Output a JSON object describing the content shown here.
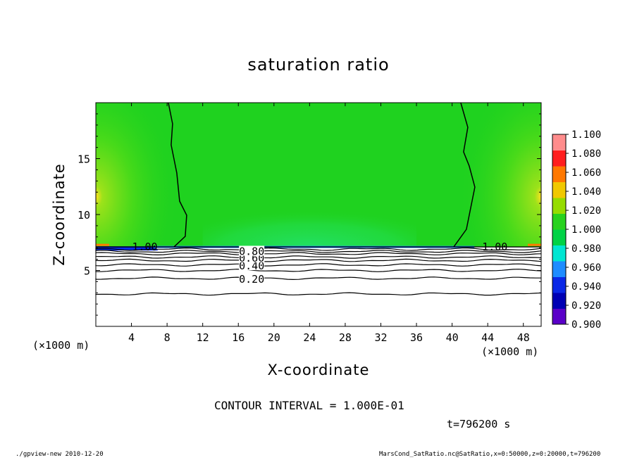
{
  "footer": {
    "left": "./gpview-new  2010-12-20",
    "right": "MarsCond_SatRatio.nc@SatRatio,x=0:50000,z=0:20000,t=796200"
  },
  "time_label": "t=796200 s",
  "contour_interval": "CONTOUR INTERVAL = 1.000E-01",
  "x_unit": "(×1000 m)",
  "colors": {
    "background": "#ffffff",
    "field_base": "#1fd21f",
    "field_light": "#52dc18",
    "field_yellowish": "#9de21a",
    "field_teal": "#22dc48",
    "under_white": "#ffffff"
  },
  "chart_data": {
    "type": "heatmap",
    "title": "saturation ratio",
    "xlabel": "X-coordinate",
    "ylabel": "Z-coordinate",
    "x_unit": "(×1000 m)",
    "xlim": [
      0,
      50
    ],
    "ylim": [
      0,
      20
    ],
    "x_ticks": [
      4,
      8,
      12,
      16,
      20,
      24,
      28,
      32,
      36,
      40,
      44,
      48
    ],
    "y_ticks": [
      5,
      10,
      15
    ],
    "colorbar": {
      "levels": [
        0.9,
        0.92,
        0.94,
        0.96,
        0.98,
        1.0,
        1.02,
        1.04,
        1.06,
        1.08,
        1.1
      ],
      "labels": [
        "0.900",
        "0.920",
        "0.940",
        "0.960",
        "0.980",
        "1.000",
        "1.020",
        "1.040",
        "1.060",
        "1.080",
        "1.100"
      ],
      "colors": [
        "#5a00c8",
        "#0000b4",
        "#0a28e6",
        "#1e8cff",
        "#00e6d2",
        "#00d246",
        "#28d21e",
        "#96dc00",
        "#f0c800",
        "#ff7800",
        "#ff1e1e",
        "#ff8c8c"
      ]
    },
    "contour_interval": 0.1,
    "contour_labels": [
      {
        "text": "0.20",
        "x": 17.5,
        "z": 4.2
      },
      {
        "text": "0.40",
        "x": 17.5,
        "z": 5.4
      },
      {
        "text": "0.60",
        "x": 17.5,
        "z": 6.1
      },
      {
        "text": "0.80",
        "x": 17.5,
        "z": 6.7
      },
      {
        "text": "1.00",
        "x": 5.5,
        "z": 7.1
      },
      {
        "text": "1.00",
        "x": 44.8,
        "z": 7.1
      }
    ],
    "contour_levels_below": [
      {
        "level": 0.1,
        "z": 2.9
      },
      {
        "level": 0.2,
        "z": 4.3
      },
      {
        "level": 0.3,
        "z": 5.0
      },
      {
        "level": 0.4,
        "z": 5.5
      },
      {
        "level": 0.5,
        "z": 5.9
      },
      {
        "level": 0.6,
        "z": 6.2
      },
      {
        "level": 0.7,
        "z": 6.5
      },
      {
        "level": 0.8,
        "z": 6.7
      },
      {
        "level": 0.9,
        "z": 6.9
      }
    ],
    "boundary_z": 7.1,
    "saturated_region_x": [
      8.3,
      40.5
    ],
    "time": "t=796200 s"
  }
}
